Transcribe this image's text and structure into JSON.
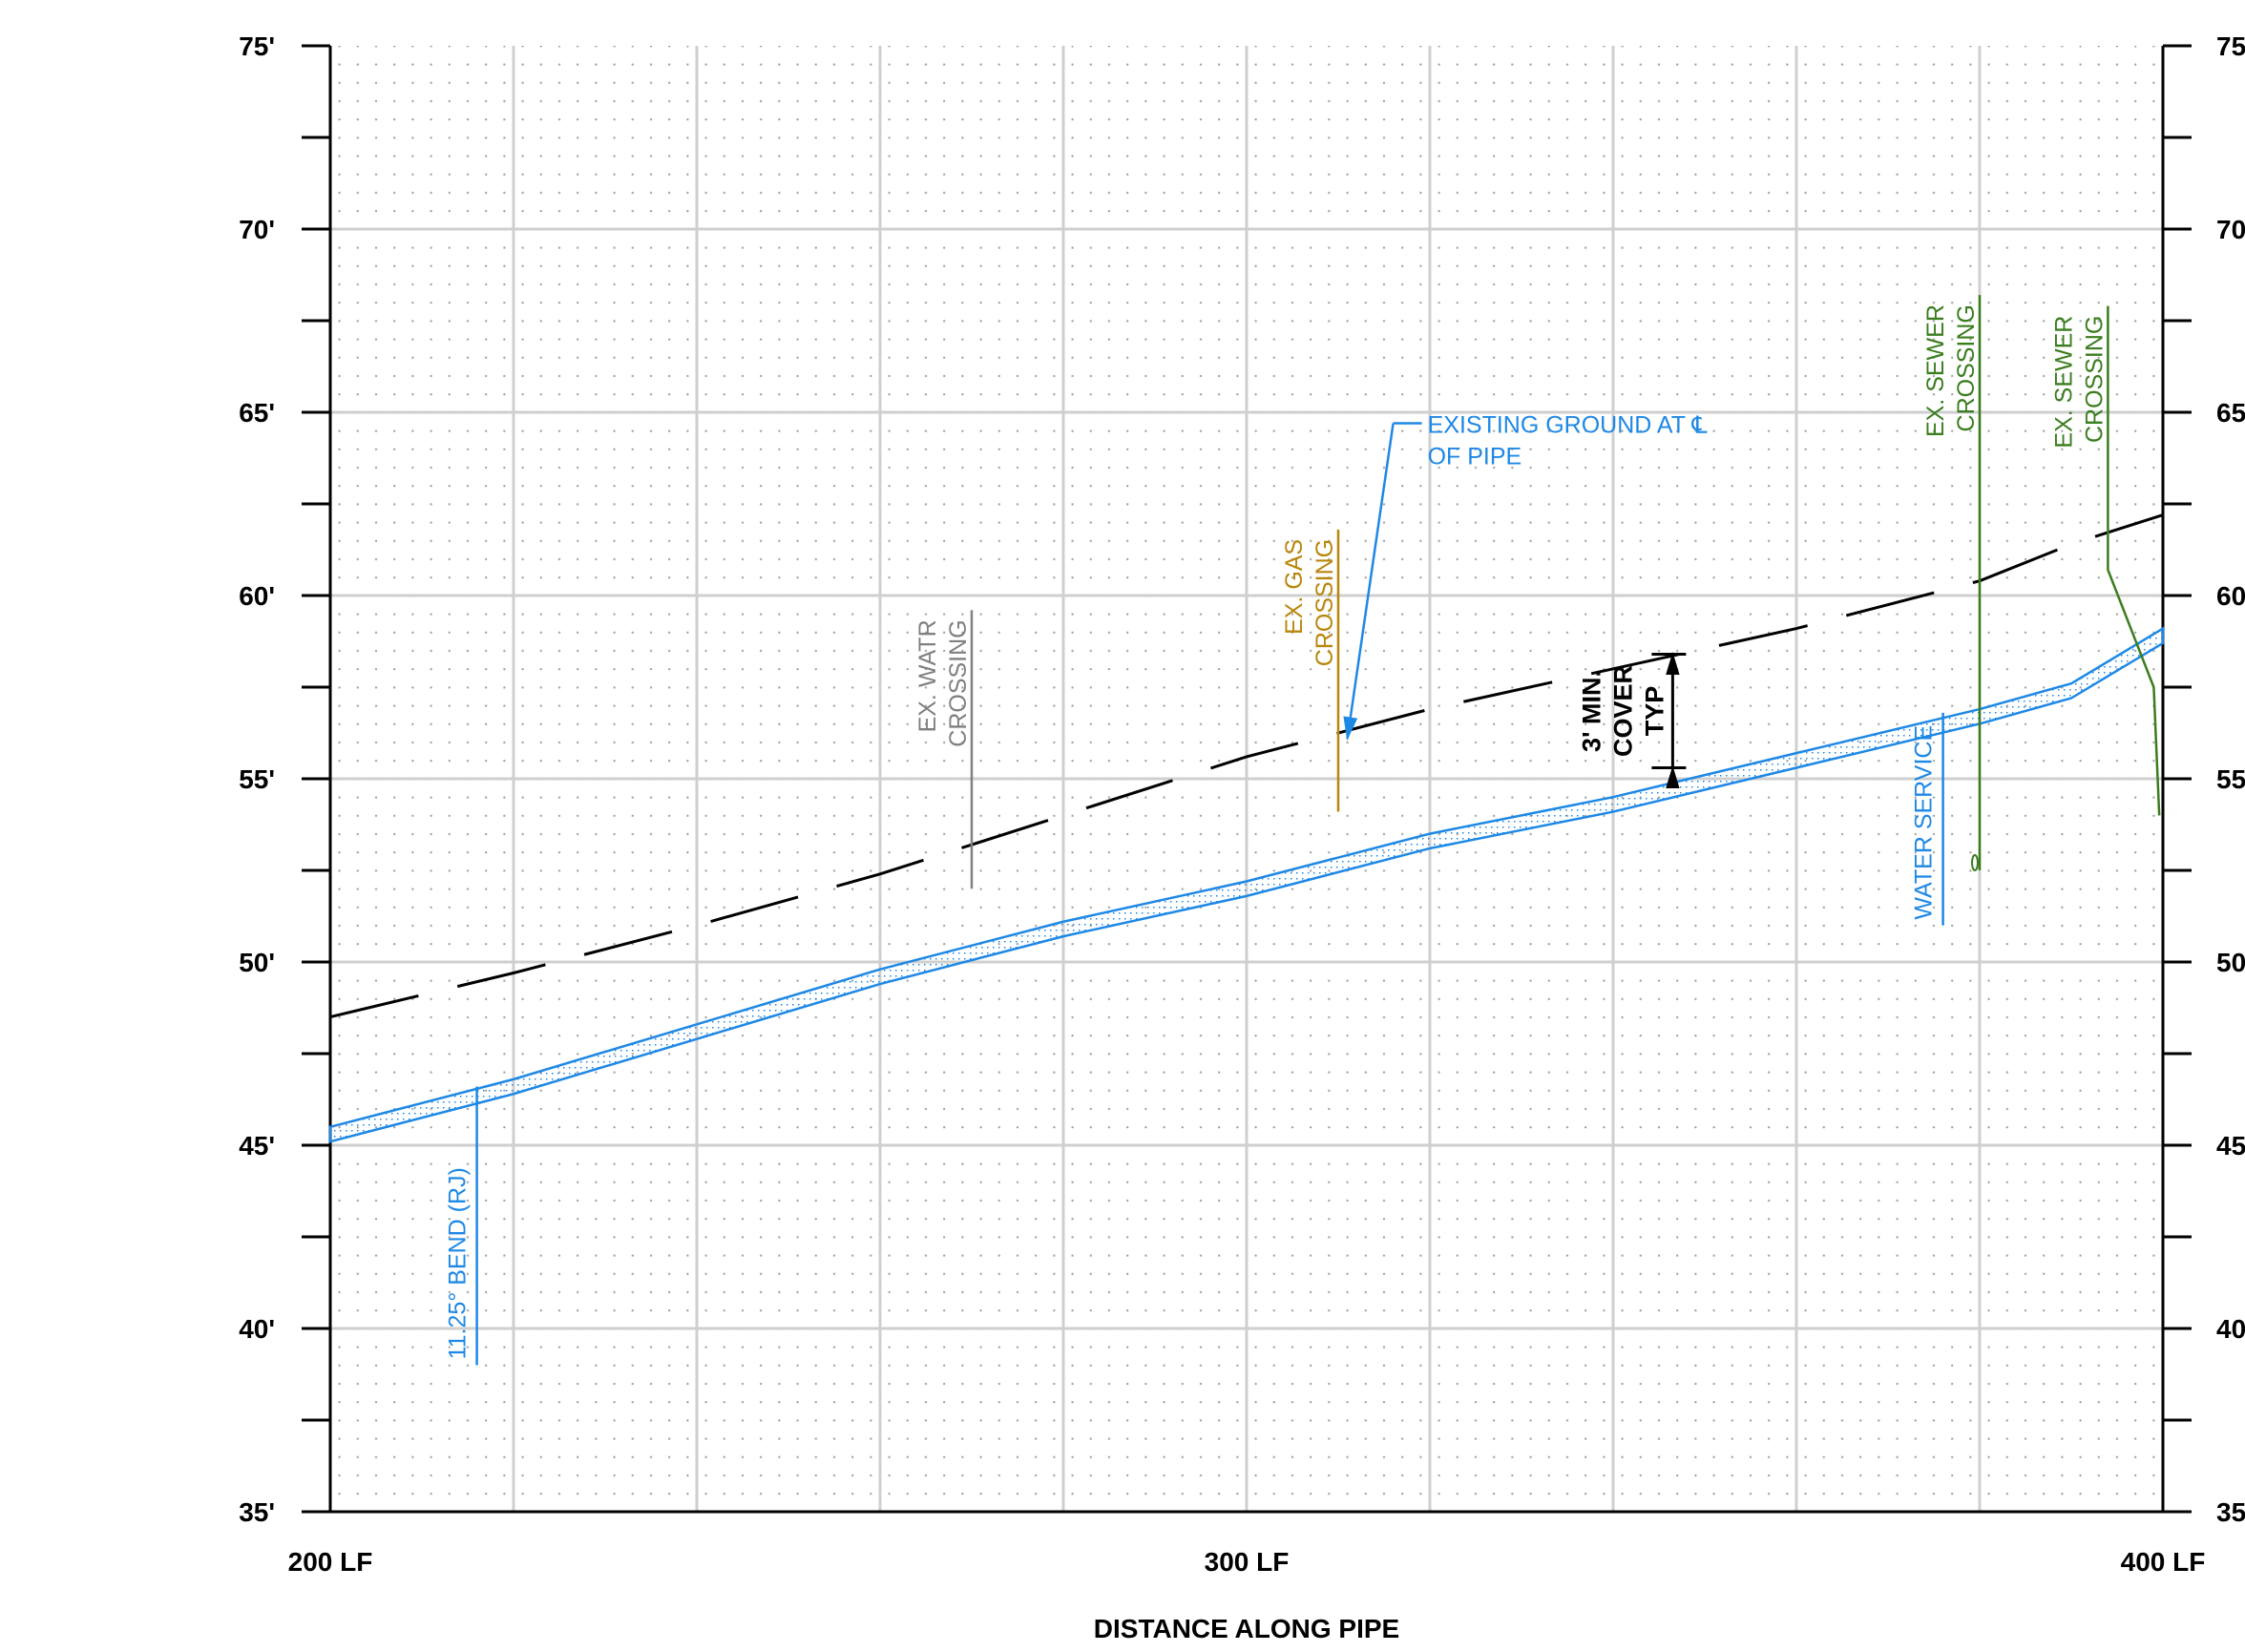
{
  "chart_data": {
    "type": "line",
    "x_min_lf": 200,
    "x_max_lf": 400,
    "y_min_ft": 35,
    "y_max_ft": 75,
    "y_major_step_ft": 5,
    "y_minor_step_ft": 2.5,
    "x_major_step_lf": 20,
    "y_tick_labels": [
      "35'",
      "40'",
      "45'",
      "50'",
      "55'",
      "60'",
      "65'",
      "70'",
      "75'"
    ],
    "y_tick_values": [
      35,
      40,
      45,
      50,
      55,
      60,
      65,
      70,
      75
    ],
    "x_tick_labels": [
      "200 LF",
      "300 LF",
      "400 LF"
    ],
    "x_tick_values": [
      200,
      300,
      400
    ],
    "xlabel": "DISTANCE ALONG PIPE",
    "grid": true,
    "series": [
      {
        "name": "EXISTING GROUND AT ℄ OF PIPE",
        "style": "dashed",
        "color": "#000000",
        "x": [
          200,
          220,
          240,
          260,
          280,
          300,
          320,
          340,
          360,
          380,
          390,
          400
        ],
        "y": [
          48.5,
          49.7,
          51.0,
          52.4,
          54.0,
          55.6,
          56.9,
          58.0,
          59.1,
          60.4,
          61.4,
          62.2
        ]
      },
      {
        "name": "",
        "style": "pipe",
        "color": "#1e88e5",
        "x": [
          200,
          220,
          240,
          260,
          280,
          300,
          320,
          340,
          360,
          380,
          390,
          400
        ],
        "y_top": [
          45.5,
          46.8,
          48.3,
          49.8,
          51.1,
          52.2,
          53.5,
          54.5,
          55.7,
          56.9,
          57.6,
          59.1
        ],
        "y_bottom": [
          45.1,
          46.4,
          47.9,
          49.4,
          50.7,
          51.8,
          53.1,
          54.1,
          55.3,
          56.5,
          57.2,
          58.7
        ]
      }
    ],
    "annotations": [
      {
        "id": "bend",
        "lines": [
          "11.25° BEND (RJ)"
        ],
        "color": "#1e88e5",
        "x": 216,
        "y_from": 39,
        "y_to": 46.6
      },
      {
        "id": "ex_watr",
        "lines": [
          "EX. WATR",
          "CROSSING"
        ],
        "color": "#808080",
        "x": 270,
        "y_from": 52,
        "y_to": 59.6
      },
      {
        "id": "ex_gas",
        "lines": [
          "EX. GAS",
          "CROSSING"
        ],
        "color": "#b8860b",
        "x": 310,
        "y_from": 54.1,
        "y_to": 61.8
      },
      {
        "id": "existing_ground",
        "lines": [
          "EXISTING GROUND AT ℄",
          "OF PIPE"
        ],
        "color": "#1e88e5",
        "leader_text_x": 316,
        "leader_text_y": 64.7,
        "arrow_x": 311,
        "arrow_y": 56.1
      },
      {
        "id": "min_cover",
        "lines": [
          "3' MIN.",
          "COVER",
          "TYP"
        ],
        "color": "#000000",
        "x": 346.5,
        "y_from": 55.3,
        "y_to": 58.4
      },
      {
        "id": "water_service",
        "lines": [
          "WATER SERVICE"
        ],
        "color": "#1e88e5",
        "x": 376,
        "y_from": 51,
        "y_to": 56.8
      },
      {
        "id": "ex_sewer_1",
        "lines": [
          "EX. SEWER",
          "CROSSING"
        ],
        "color": "#3a7d1e",
        "x": 380,
        "y_from": 52.5,
        "y_to": 68.2
      },
      {
        "id": "ex_sewer_2",
        "lines": [
          "EX. SEWER",
          "CROSSING"
        ],
        "color": "#3a7d1e",
        "x": 394,
        "y_from": 54,
        "y_to": 67.9
      }
    ]
  }
}
